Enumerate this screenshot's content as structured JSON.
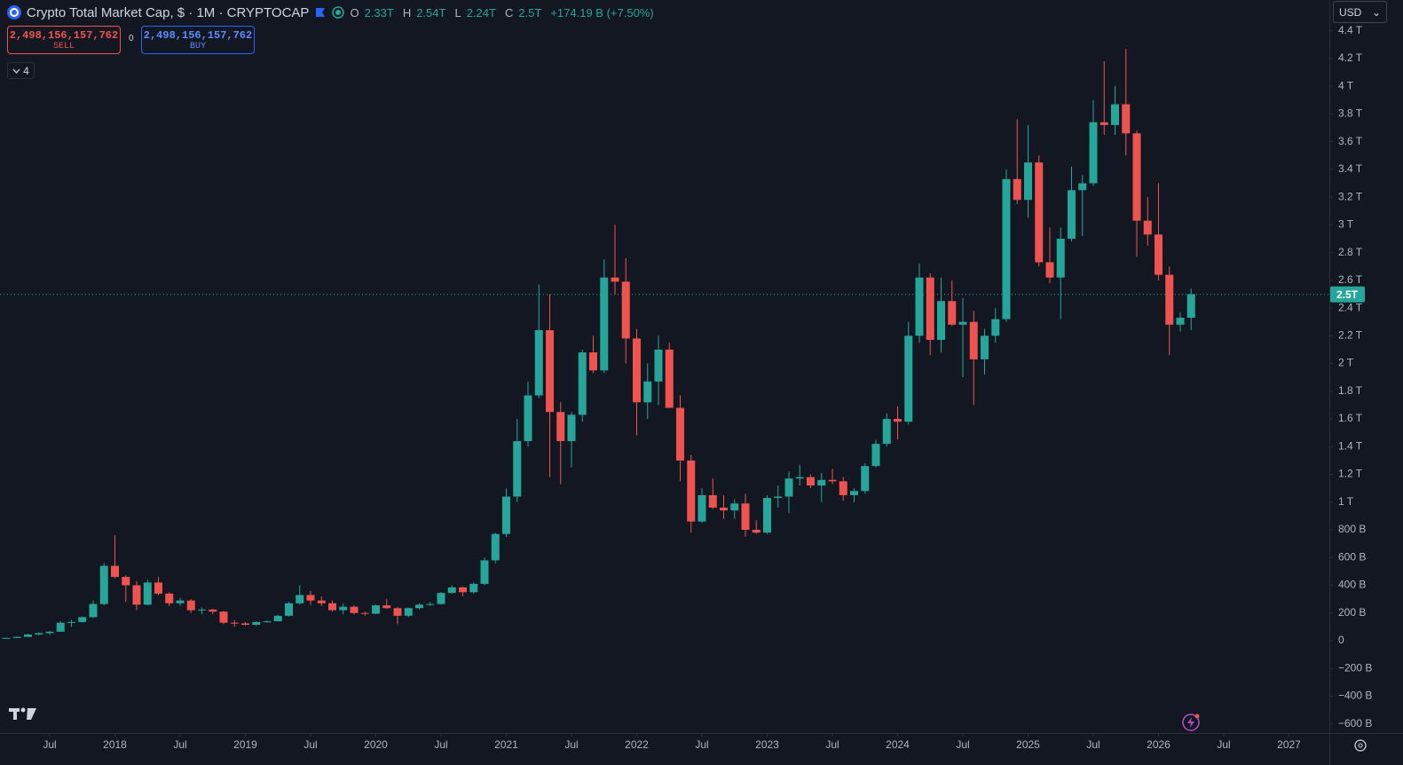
{
  "header": {
    "title": "Crypto Total Market Cap, $ · 1M · CRYPTOCAP",
    "ohlc": [
      {
        "key": "O",
        "value": "2.33T"
      },
      {
        "key": "H",
        "value": "2.54T"
      },
      {
        "key": "L",
        "value": "2.24T"
      },
      {
        "key": "C",
        "value": "2.5T"
      }
    ],
    "change": "+174.19 B (+7.50%)"
  },
  "trade": {
    "sell_price": "2,498,156,157,762",
    "sell": "SELL",
    "spread": "0",
    "buy_price": "2,498,156,157,762",
    "buy": "BUY"
  },
  "indicators_count": "4",
  "currency": "USD",
  "chart_data": {
    "type": "candlestick",
    "up_color": "#26a69a",
    "down_color": "#ef5350",
    "x": [
      "2017-03",
      "2017-04",
      "2017-05",
      "2017-06",
      "2017-07",
      "2017-08",
      "2017-09",
      "2017-10",
      "2017-11",
      "2017-12",
      "2018-01",
      "2018-02",
      "2018-03",
      "2018-04",
      "2018-05",
      "2018-06",
      "2018-07",
      "2018-08",
      "2018-09",
      "2018-10",
      "2018-11",
      "2018-12",
      "2019-01",
      "2019-02",
      "2019-03",
      "2019-04",
      "2019-05",
      "2019-06",
      "2019-07",
      "2019-08",
      "2019-09",
      "2019-10",
      "2019-11",
      "2019-12",
      "2020-01",
      "2020-02",
      "2020-03",
      "2020-04",
      "2020-05",
      "2020-06",
      "2020-07",
      "2020-08",
      "2020-09",
      "2020-10",
      "2020-11",
      "2020-12",
      "2021-01",
      "2021-02",
      "2021-03",
      "2021-04",
      "2021-05",
      "2021-06",
      "2021-07",
      "2021-08",
      "2021-09",
      "2021-10",
      "2021-11",
      "2021-12",
      "2022-01",
      "2022-02",
      "2022-03",
      "2022-04",
      "2022-05",
      "2022-06",
      "2022-07",
      "2022-08",
      "2022-09",
      "2022-10",
      "2022-11",
      "2022-12",
      "2023-01",
      "2023-02",
      "2023-03",
      "2023-04",
      "2023-05",
      "2023-06",
      "2023-07",
      "2023-08",
      "2023-09",
      "2023-10",
      "2023-11",
      "2023-12",
      "2024-01",
      "2024-02",
      "2024-03",
      "2024-04",
      "2024-05",
      "2024-06",
      "2024-07",
      "2024-08",
      "2024-09",
      "2024-10",
      "2024-11",
      "2024-12",
      "2025-01",
      "2025-02",
      "2025-03",
      "2025-04",
      "2025-05",
      "2025-06",
      "2025-07",
      "2025-08",
      "2025-09",
      "2025-10",
      "2025-11",
      "2025-12",
      "2026-01",
      "2026-02",
      "2026-03",
      "2026-04"
    ],
    "open": [
      15,
      20,
      28,
      45,
      55,
      65,
      130,
      135,
      170,
      265,
      540,
      460,
      400,
      260,
      420,
      340,
      270,
      290,
      220,
      225,
      210,
      130,
      125,
      115,
      135,
      140,
      180,
      270,
      330,
      290,
      270,
      220,
      245,
      200,
      195,
      255,
      235,
      180,
      235,
      260,
      265,
      345,
      385,
      350,
      410,
      580,
      770,
      1040,
      1440,
      1770,
      2240,
      1650,
      1440,
      1630,
      2080,
      1950,
      2620,
      2590,
      2180,
      1720,
      1870,
      2100,
      1680,
      1300,
      860,
      1050,
      960,
      940,
      990,
      800,
      780,
      1030,
      1040,
      1170,
      1180,
      1120,
      1160,
      1150,
      1050,
      1080,
      1260,
      1420,
      1600,
      1580,
      2200,
      2620,
      2170,
      2450,
      2280,
      2300,
      2030,
      2200,
      2320,
      3330,
      3180,
      3450,
      2730,
      2620,
      2900,
      3250,
      3300,
      3740,
      3720,
      3870,
      3660,
      3030,
      2930,
      2640,
      2280,
      2330
    ],
    "high": [
      22,
      30,
      50,
      60,
      70,
      140,
      150,
      175,
      290,
      560,
      760,
      470,
      430,
      440,
      460,
      350,
      310,
      300,
      240,
      230,
      215,
      150,
      135,
      140,
      145,
      185,
      280,
      400,
      360,
      320,
      290,
      270,
      255,
      210,
      260,
      300,
      245,
      240,
      270,
      280,
      350,
      400,
      390,
      420,
      600,
      780,
      1100,
      1600,
      1870,
      2570,
      2500,
      1720,
      1650,
      2100,
      2200,
      2750,
      3000,
      2760,
      2250,
      2000,
      2200,
      2150,
      1770,
      1340,
      1100,
      1170,
      1050,
      1020,
      1060,
      870,
      1050,
      1120,
      1220,
      1270,
      1200,
      1210,
      1240,
      1180,
      1100,
      1280,
      1450,
      1640,
      1690,
      2300,
      2720,
      2650,
      2620,
      2600,
      2470,
      2380,
      2250,
      2400,
      3400,
      3760,
      3720,
      3500,
      2980,
      2980,
      3420,
      3360,
      3900,
      4180,
      4000,
      4270,
      3680,
      3200,
      3300,
      2700,
      2370,
      2540
    ],
    "low": [
      13,
      19,
      27,
      40,
      45,
      64,
      100,
      130,
      165,
      255,
      450,
      280,
      220,
      255,
      330,
      250,
      250,
      200,
      190,
      190,
      120,
      100,
      110,
      110,
      130,
      140,
      175,
      260,
      260,
      250,
      210,
      190,
      190,
      180,
      190,
      230,
      120,
      170,
      225,
      250,
      260,
      340,
      320,
      340,
      400,
      560,
      750,
      1000,
      1400,
      1750,
      1180,
      1130,
      1250,
      1580,
      1930,
      1930,
      2500,
      2000,
      1480,
      1600,
      1700,
      1700,
      1150,
      780,
      850,
      950,
      880,
      880,
      750,
      770,
      770,
      960,
      920,
      1120,
      1100,
      1000,
      1130,
      1010,
      1000,
      1060,
      1250,
      1400,
      1450,
      1560,
      2150,
      2060,
      2080,
      2270,
      1900,
      1700,
      1920,
      2150,
      2300,
      3150,
      3050,
      2700,
      2580,
      2320,
      2880,
      2920,
      3280,
      3650,
      3650,
      3500,
      2770,
      2850,
      2600,
      2060,
      2230,
      2240
    ],
    "close": [
      20,
      28,
      45,
      55,
      65,
      130,
      135,
      170,
      265,
      540,
      460,
      400,
      260,
      420,
      340,
      270,
      290,
      220,
      225,
      210,
      130,
      125,
      115,
      135,
      140,
      180,
      270,
      330,
      290,
      270,
      220,
      245,
      200,
      195,
      255,
      235,
      180,
      235,
      260,
      265,
      345,
      385,
      350,
      410,
      580,
      770,
      1040,
      1440,
      1770,
      2240,
      1650,
      1440,
      1630,
      2080,
      1950,
      2620,
      2590,
      2180,
      1720,
      1870,
      2100,
      1680,
      1300,
      860,
      1050,
      960,
      940,
      990,
      800,
      780,
      1030,
      1040,
      1170,
      1180,
      1120,
      1160,
      1150,
      1050,
      1080,
      1260,
      1420,
      1600,
      1580,
      2200,
      2620,
      2170,
      2450,
      2280,
      2300,
      2030,
      2200,
      2320,
      3330,
      3180,
      3450,
      2730,
      2620,
      2900,
      3250,
      3300,
      3740,
      3720,
      3870,
      3660,
      3030,
      2930,
      2640,
      2280,
      2330,
      2500
    ],
    "xlim": [
      "2017-03",
      "2027-04"
    ],
    "xticks": [
      {
        "value": "2017-07",
        "label": "Jul"
      },
      {
        "value": "2018-01",
        "label": "2018"
      },
      {
        "value": "2018-07",
        "label": "Jul"
      },
      {
        "value": "2019-01",
        "label": "2019"
      },
      {
        "value": "2019-07",
        "label": "Jul"
      },
      {
        "value": "2020-01",
        "label": "2020"
      },
      {
        "value": "2020-07",
        "label": "Jul"
      },
      {
        "value": "2021-01",
        "label": "2021"
      },
      {
        "value": "2021-07",
        "label": "Jul"
      },
      {
        "value": "2022-01",
        "label": "2022"
      },
      {
        "value": "2022-07",
        "label": "Jul"
      },
      {
        "value": "2023-01",
        "label": "2023"
      },
      {
        "value": "2023-07",
        "label": "Jul"
      },
      {
        "value": "2024-01",
        "label": "2024"
      },
      {
        "value": "2024-07",
        "label": "Jul"
      },
      {
        "value": "2025-01",
        "label": "2025"
      },
      {
        "value": "2025-07",
        "label": "Jul"
      },
      {
        "value": "2026-01",
        "label": "2026"
      },
      {
        "value": "2026-07",
        "label": "Jul"
      },
      {
        "value": "2027-01",
        "label": "2027"
      }
    ],
    "ylim": [
      -666,
      4622
    ],
    "yticks": [
      {
        "value": -600,
        "label": "−600 B"
      },
      {
        "value": -400,
        "label": "−400 B"
      },
      {
        "value": -200,
        "label": "−200 B"
      },
      0,
      {
        "value": 200,
        "label": "200 B"
      },
      {
        "value": 400,
        "label": "400 B"
      },
      {
        "value": 600,
        "label": "600 B"
      },
      {
        "value": 800,
        "label": "800 B"
      },
      {
        "value": 1000,
        "label": "1 T"
      },
      {
        "value": 1200,
        "label": "1.2 T"
      },
      {
        "value": 1400,
        "label": "1.4 T"
      },
      {
        "value": 1600,
        "label": "1.6 T"
      },
      {
        "value": 1800,
        "label": "1.8 T"
      },
      {
        "value": 2000,
        "label": "2 T"
      },
      {
        "value": 2200,
        "label": "2.2 T"
      },
      {
        "value": 2400,
        "label": "2.4 T"
      },
      {
        "value": 2600,
        "label": "2.6 T"
      },
      {
        "value": 2800,
        "label": "2.8 T"
      },
      {
        "value": 3000,
        "label": "3 T"
      },
      {
        "value": 3200,
        "label": "3.2 T"
      },
      {
        "value": 3400,
        "label": "3.4 T"
      },
      {
        "value": 3600,
        "label": "3.6 T"
      },
      {
        "value": 3800,
        "label": "3.8 T"
      },
      {
        "value": 4000,
        "label": "4 T"
      },
      {
        "value": 4200,
        "label": "4.2 T"
      },
      {
        "value": 4400,
        "label": "4.4 T"
      }
    ],
    "price_line": {
      "value": 2498.16,
      "label": "2.5T"
    }
  }
}
